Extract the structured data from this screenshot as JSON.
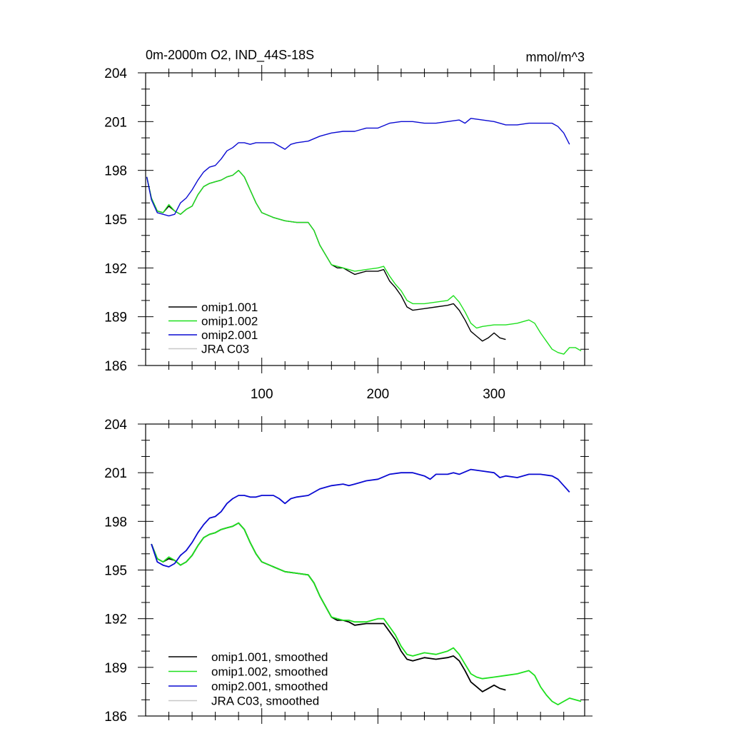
{
  "chart_data": [
    {
      "type": "line",
      "title": "0m-2000m O2, IND_44S-18S",
      "unit_label": "mmol/m^3",
      "xlim": [
        0,
        378
      ],
      "ylim": [
        186,
        204
      ],
      "x_ticks": [
        100,
        200,
        300
      ],
      "y_ticks": [
        186,
        189,
        192,
        195,
        198,
        201,
        204
      ],
      "x_tick_labels": [
        "100",
        "200",
        "300"
      ],
      "y_tick_labels": [
        "186",
        "189",
        "192",
        "195",
        "198",
        "201",
        "204"
      ],
      "legend_position": "lower-left",
      "series": [
        {
          "name": "omip1.001",
          "color": "#000000",
          "x": [
            1,
            5,
            10,
            15,
            20,
            25,
            30,
            35,
            40,
            45,
            50,
            55,
            60,
            65,
            70,
            75,
            80,
            85,
            90,
            95,
            100,
            110,
            120,
            130,
            140,
            145,
            150,
            160,
            165,
            170,
            175,
            180,
            190,
            200,
            205,
            210,
            215,
            220,
            225,
            230,
            240,
            250,
            260,
            265,
            270,
            275,
            280,
            285,
            290,
            295,
            300,
            305,
            310
          ],
          "values": [
            197.6,
            196.3,
            195.5,
            195.4,
            195.8,
            195.5,
            195.3,
            195.6,
            195.8,
            196.5,
            197.0,
            197.2,
            197.3,
            197.4,
            197.6,
            197.7,
            198.0,
            197.6,
            196.8,
            196.0,
            195.4,
            195.1,
            194.9,
            194.8,
            194.8,
            194.3,
            193.4,
            192.2,
            192.0,
            192.0,
            191.8,
            191.6,
            191.8,
            191.8,
            191.9,
            191.2,
            190.8,
            190.3,
            189.6,
            189.4,
            189.5,
            189.6,
            189.7,
            189.8,
            189.4,
            188.8,
            188.1,
            187.8,
            187.5,
            187.7,
            188.0,
            187.7,
            187.6
          ]
        },
        {
          "name": "omip1.002",
          "color": "#1ee01e",
          "x": [
            1,
            5,
            10,
            15,
            20,
            25,
            30,
            35,
            40,
            45,
            50,
            55,
            60,
            65,
            70,
            75,
            80,
            85,
            90,
            95,
            100,
            110,
            120,
            130,
            140,
            145,
            150,
            160,
            165,
            170,
            175,
            180,
            190,
            200,
            205,
            210,
            215,
            220,
            225,
            230,
            240,
            250,
            260,
            265,
            270,
            275,
            280,
            285,
            290,
            300,
            310,
            320,
            330,
            335,
            340,
            345,
            350,
            355,
            360,
            365,
            370,
            375
          ],
          "values": [
            197.6,
            196.3,
            195.5,
            195.4,
            195.9,
            195.5,
            195.3,
            195.6,
            195.8,
            196.5,
            197.0,
            197.2,
            197.3,
            197.4,
            197.6,
            197.7,
            198.0,
            197.6,
            196.8,
            196.0,
            195.4,
            195.1,
            194.9,
            194.8,
            194.8,
            194.3,
            193.4,
            192.2,
            192.1,
            192.0,
            191.9,
            191.8,
            191.9,
            192.0,
            192.1,
            191.5,
            191.0,
            190.6,
            190.0,
            189.8,
            189.8,
            189.9,
            190.0,
            190.3,
            189.9,
            189.3,
            188.6,
            188.3,
            188.4,
            188.5,
            188.5,
            188.6,
            188.8,
            188.6,
            188.0,
            187.5,
            187.0,
            186.8,
            186.7,
            187.1,
            187.1,
            186.9
          ]
        },
        {
          "name": "omip2.001",
          "color": "#0a0ad2",
          "x": [
            1,
            5,
            10,
            15,
            20,
            25,
            30,
            35,
            40,
            45,
            50,
            55,
            60,
            65,
            70,
            75,
            80,
            85,
            90,
            95,
            100,
            110,
            120,
            125,
            130,
            140,
            150,
            160,
            170,
            180,
            190,
            200,
            210,
            220,
            230,
            240,
            250,
            260,
            270,
            275,
            280,
            290,
            300,
            310,
            320,
            330,
            340,
            350,
            355,
            360,
            365
          ],
          "values": [
            197.6,
            196.2,
            195.4,
            195.3,
            195.2,
            195.3,
            196.0,
            196.3,
            196.8,
            197.4,
            197.9,
            198.2,
            198.3,
            198.7,
            199.2,
            199.4,
            199.7,
            199.7,
            199.6,
            199.7,
            199.7,
            199.7,
            199.3,
            199.6,
            199.7,
            199.8,
            200.1,
            200.3,
            200.4,
            200.4,
            200.6,
            200.6,
            200.9,
            201.0,
            201.0,
            200.9,
            200.9,
            201.0,
            201.1,
            200.9,
            201.2,
            201.1,
            201.0,
            200.8,
            200.8,
            200.9,
            200.9,
            200.9,
            200.7,
            200.3,
            199.6
          ]
        },
        {
          "name": "JRA C03",
          "color": "#c8c8c8",
          "x": [],
          "values": []
        }
      ]
    },
    {
      "type": "line",
      "title": "",
      "xlim": [
        0,
        378
      ],
      "ylim": [
        186,
        204
      ],
      "x_ticks": [
        100,
        200,
        300
      ],
      "y_ticks": [
        186,
        189,
        192,
        195,
        198,
        201,
        204
      ],
      "y_tick_labels": [
        "186",
        "189",
        "192",
        "195",
        "198",
        "201",
        "204"
      ],
      "legend_position": "lower-left",
      "series": [
        {
          "name": "omip1.001, smoothed",
          "color": "#000000",
          "x": [
            5,
            10,
            15,
            20,
            25,
            30,
            35,
            40,
            45,
            50,
            55,
            60,
            65,
            70,
            75,
            80,
            85,
            90,
            95,
            100,
            110,
            120,
            130,
            140,
            145,
            150,
            160,
            165,
            170,
            175,
            180,
            190,
            200,
            205,
            210,
            215,
            220,
            225,
            230,
            240,
            250,
            260,
            265,
            270,
            275,
            280,
            285,
            290,
            295,
            300,
            305,
            310
          ],
          "values": [
            196.6,
            195.7,
            195.5,
            195.7,
            195.6,
            195.3,
            195.5,
            195.9,
            196.5,
            197.0,
            197.2,
            197.3,
            197.5,
            197.6,
            197.7,
            197.9,
            197.5,
            196.7,
            196.0,
            195.5,
            195.2,
            194.9,
            194.8,
            194.7,
            194.2,
            193.4,
            192.1,
            191.9,
            191.9,
            191.8,
            191.6,
            191.7,
            191.7,
            191.7,
            191.2,
            190.7,
            190.0,
            189.5,
            189.4,
            189.6,
            189.5,
            189.6,
            189.7,
            189.4,
            188.8,
            188.1,
            187.8,
            187.5,
            187.7,
            187.9,
            187.7,
            187.6
          ]
        },
        {
          "name": "omip1.002, smoothed",
          "color": "#1ee01e",
          "x": [
            5,
            10,
            15,
            20,
            25,
            30,
            35,
            40,
            45,
            50,
            55,
            60,
            65,
            70,
            75,
            80,
            85,
            90,
            95,
            100,
            110,
            120,
            130,
            140,
            145,
            150,
            160,
            165,
            170,
            175,
            180,
            190,
            200,
            205,
            210,
            215,
            220,
            225,
            230,
            240,
            250,
            260,
            265,
            270,
            275,
            280,
            285,
            290,
            300,
            310,
            320,
            330,
            335,
            340,
            345,
            350,
            355,
            360,
            365,
            370,
            375
          ],
          "values": [
            196.6,
            195.7,
            195.5,
            195.8,
            195.6,
            195.3,
            195.5,
            195.9,
            196.5,
            197.0,
            197.2,
            197.3,
            197.5,
            197.6,
            197.7,
            197.9,
            197.5,
            196.7,
            196.0,
            195.5,
            195.2,
            194.9,
            194.8,
            194.7,
            194.2,
            193.4,
            192.1,
            192.0,
            191.9,
            191.9,
            191.8,
            191.8,
            192.0,
            192.0,
            191.5,
            191.0,
            190.3,
            189.8,
            189.7,
            189.9,
            189.8,
            190.0,
            190.2,
            189.8,
            189.2,
            188.6,
            188.4,
            188.3,
            188.4,
            188.5,
            188.6,
            188.8,
            188.5,
            187.8,
            187.3,
            186.9,
            186.7,
            186.9,
            187.1,
            187.0,
            186.9
          ]
        },
        {
          "name": "omip2.001, smoothed",
          "color": "#0a0ad2",
          "x": [
            5,
            10,
            15,
            20,
            25,
            30,
            35,
            40,
            45,
            50,
            55,
            60,
            65,
            70,
            75,
            80,
            85,
            90,
            95,
            100,
            110,
            115,
            120,
            125,
            130,
            140,
            150,
            160,
            170,
            175,
            180,
            190,
            200,
            210,
            220,
            230,
            240,
            245,
            250,
            260,
            265,
            270,
            280,
            290,
            300,
            305,
            310,
            320,
            330,
            340,
            350,
            355,
            360,
            365
          ],
          "values": [
            196.6,
            195.5,
            195.3,
            195.2,
            195.4,
            195.9,
            196.2,
            196.7,
            197.3,
            197.8,
            198.2,
            198.3,
            198.6,
            199.1,
            199.4,
            199.6,
            199.6,
            199.5,
            199.5,
            199.6,
            199.6,
            199.4,
            199.1,
            199.4,
            199.5,
            199.6,
            200.0,
            200.2,
            200.3,
            200.2,
            200.3,
            200.5,
            200.6,
            200.9,
            201.0,
            201.0,
            200.8,
            200.6,
            200.9,
            200.9,
            201.0,
            200.9,
            201.2,
            201.1,
            201.0,
            200.7,
            200.8,
            200.7,
            200.9,
            200.9,
            200.8,
            200.6,
            200.2,
            199.8
          ]
        },
        {
          "name": "JRA C03, smoothed",
          "color": "#c8c8c8",
          "x": [],
          "values": []
        }
      ]
    }
  ]
}
